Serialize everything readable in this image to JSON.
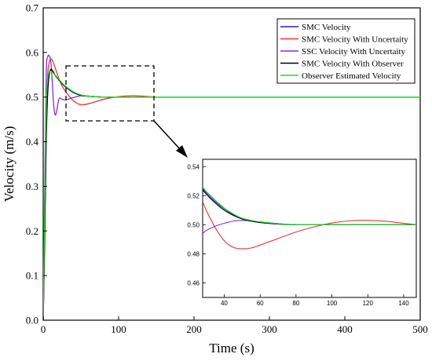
{
  "chart_data": [
    {
      "type": "line",
      "role": "main",
      "xlabel": "Time (s)",
      "ylabel": "Velocity (m/s)",
      "xlim": [
        0,
        500
      ],
      "ylim": [
        0,
        0.7
      ],
      "xticks": [
        0,
        100,
        200,
        300,
        400,
        500
      ],
      "yticks": [
        0,
        0.1,
        0.2,
        0.3,
        0.4,
        0.5,
        0.6,
        0.7
      ],
      "grid": false,
      "legend_position": "top-right",
      "series": [
        {
          "name": "SMC Velocity",
          "color": "#1f1fd6",
          "x": [
            0,
            2,
            4,
            6,
            8,
            10,
            12,
            14,
            16,
            20,
            25,
            30,
            40,
            50,
            60,
            80,
            100,
            150,
            200,
            300,
            400,
            500
          ],
          "y": [
            0,
            0.2,
            0.42,
            0.52,
            0.555,
            0.56,
            0.558,
            0.553,
            0.548,
            0.54,
            0.53,
            0.522,
            0.51,
            0.504,
            0.502,
            0.5,
            0.5,
            0.5,
            0.5,
            0.5,
            0.5,
            0.5
          ]
        },
        {
          "name": "SMC Velocity With Uncertaity",
          "color": "#ee3333",
          "x": [
            0,
            2,
            4,
            6,
            8,
            10,
            12,
            14,
            16,
            20,
            25,
            30,
            40,
            50,
            60,
            70,
            80,
            100,
            120,
            140,
            150,
            200,
            300,
            400,
            500
          ],
          "y": [
            0,
            0.2,
            0.45,
            0.55,
            0.578,
            0.585,
            0.583,
            0.575,
            0.565,
            0.545,
            0.525,
            0.512,
            0.492,
            0.483,
            0.485,
            0.49,
            0.495,
            0.501,
            0.503,
            0.501,
            0.5,
            0.5,
            0.5,
            0.5,
            0.5
          ]
        },
        {
          "name": "SSC Velocity With Uncertaity",
          "color": "#8a2be2",
          "x": [
            0,
            2,
            4,
            6,
            8,
            10,
            12,
            14,
            16,
            18,
            20,
            22,
            25,
            30,
            40,
            50,
            60,
            80,
            100,
            150,
            200,
            300,
            400,
            500
          ],
          "y": [
            0,
            0.3,
            0.55,
            0.59,
            0.592,
            0.58,
            0.535,
            0.48,
            0.46,
            0.47,
            0.49,
            0.498,
            0.495,
            0.494,
            0.499,
            0.503,
            0.502,
            0.5,
            0.5,
            0.5,
            0.5,
            0.5,
            0.5,
            0.5
          ]
        },
        {
          "name": "SMC Velocity With Observer",
          "color": "#000000",
          "x": [
            0,
            2,
            4,
            6,
            8,
            10,
            12,
            14,
            16,
            20,
            25,
            30,
            40,
            50,
            60,
            80,
            100,
            150,
            200,
            300,
            400,
            500
          ],
          "y": [
            0,
            0.18,
            0.4,
            0.51,
            0.55,
            0.562,
            0.56,
            0.555,
            0.549,
            0.541,
            0.531,
            0.523,
            0.511,
            0.504,
            0.502,
            0.5,
            0.5,
            0.5,
            0.5,
            0.5,
            0.5,
            0.5
          ]
        },
        {
          "name": "Observer Estimated Velocity",
          "color": "#22dd22",
          "x": [
            0,
            2,
            4,
            6,
            8,
            10,
            12,
            14,
            16,
            20,
            25,
            30,
            40,
            50,
            60,
            80,
            100,
            150,
            200,
            300,
            400,
            500
          ],
          "y": [
            0,
            0.25,
            0.48,
            0.54,
            0.556,
            0.558,
            0.556,
            0.553,
            0.549,
            0.542,
            0.532,
            0.524,
            0.512,
            0.505,
            0.502,
            0.5,
            0.5,
            0.5,
            0.5,
            0.5,
            0.5,
            0.5
          ]
        }
      ]
    },
    {
      "type": "line",
      "role": "inset",
      "xlim": [
        28,
        147
      ],
      "ylim": [
        0.45,
        0.545
      ],
      "xticks": [
        40,
        60,
        80,
        100,
        120,
        140
      ],
      "yticks": [
        0.46,
        0.48,
        0.5,
        0.52,
        0.54
      ],
      "ytick_labels": [
        "0.46",
        "0.48",
        "0.50",
        "0.52",
        "0.54"
      ],
      "series": [
        {
          "name": "SMC Velocity",
          "color": "#1f1fd6",
          "x": [
            28,
            30,
            35,
            40,
            45,
            50,
            55,
            60,
            70,
            80,
            100,
            147
          ],
          "y": [
            0.525,
            0.522,
            0.516,
            0.511,
            0.507,
            0.504,
            0.5025,
            0.5015,
            0.5005,
            0.5,
            0.5,
            0.5
          ]
        },
        {
          "name": "SMC Velocity With Uncertaity",
          "color": "#ee3333",
          "x": [
            28,
            30,
            35,
            40,
            45,
            50,
            55,
            60,
            70,
            80,
            90,
            100,
            110,
            120,
            130,
            140,
            147
          ],
          "y": [
            0.516,
            0.51,
            0.498,
            0.489,
            0.4845,
            0.4835,
            0.484,
            0.486,
            0.4905,
            0.495,
            0.4985,
            0.5012,
            0.5027,
            0.503,
            0.5024,
            0.501,
            0.5
          ]
        },
        {
          "name": "SSC Velocity With Uncertaity",
          "color": "#8a2be2",
          "x": [
            28,
            30,
            35,
            40,
            45,
            50,
            55,
            60,
            70,
            80,
            100,
            147
          ],
          "y": [
            0.494,
            0.496,
            0.499,
            0.501,
            0.5025,
            0.503,
            0.5025,
            0.502,
            0.5008,
            0.5,
            0.5,
            0.5
          ]
        },
        {
          "name": "SMC Velocity With Observer",
          "color": "#000000",
          "x": [
            28,
            30,
            35,
            40,
            45,
            50,
            55,
            60,
            70,
            80,
            100,
            147
          ],
          "y": [
            0.524,
            0.521,
            0.515,
            0.51,
            0.5065,
            0.504,
            0.5025,
            0.5015,
            0.5005,
            0.5,
            0.5,
            0.5
          ]
        },
        {
          "name": "Observer Estimated Velocity",
          "color": "#22dd22",
          "x": [
            28,
            30,
            35,
            40,
            45,
            50,
            55,
            60,
            70,
            80,
            100,
            147
          ],
          "y": [
            0.526,
            0.523,
            0.517,
            0.5115,
            0.5075,
            0.5045,
            0.503,
            0.502,
            0.5008,
            0.5,
            0.5,
            0.5
          ]
        }
      ]
    }
  ]
}
